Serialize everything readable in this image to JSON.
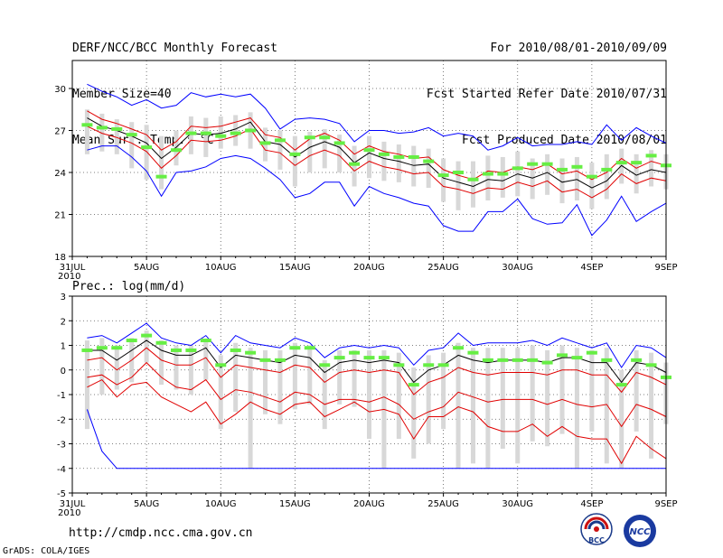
{
  "header": {
    "left": [
      "DERF/NCC/BCC Monthly Forecast",
      "Member Size=40",
      "Mean Surf. Temp.: °C"
    ],
    "right": [
      "For 2010/08/01-2010/09/09",
      "Fcst Started Refer Date 2010/07/31",
      "Fcst Produced Date 2010/08/01"
    ]
  },
  "footer": {
    "url": "http://cmdp.ncc.cma.gov.cn",
    "credit": "GrADS: COLA/IGES",
    "logo_left_text": "BCC",
    "logo_right_text": "NCC"
  },
  "colors": {
    "envelope": "#0000ff",
    "spread": "#e00000",
    "ensemble_mean": "#000000",
    "median_mark": "#66ee44",
    "box": "#d8d8d8"
  },
  "chart_data": [
    {
      "type": "box-ensemble",
      "title": "Mean Surf. Temp.: °C",
      "ylim": [
        18,
        32
      ],
      "yticks": [
        18,
        21,
        24,
        27,
        30
      ],
      "grid": true,
      "x_ticks": [
        {
          "label": "31JUL",
          "sub": "2010",
          "day": 0
        },
        {
          "label": "5AUG",
          "day": 5
        },
        {
          "label": "10AUG",
          "day": 10
        },
        {
          "label": "15AUG",
          "day": 15
        },
        {
          "label": "20AUG",
          "day": 20
        },
        {
          "label": "25AUG",
          "day": 25
        },
        {
          "label": "30AUG",
          "day": 30
        },
        {
          "label": "4SEP",
          "day": 35
        },
        {
          "label": "9SEP",
          "day": 40
        }
      ],
      "days": [
        1,
        2,
        3,
        4,
        5,
        6,
        7,
        8,
        9,
        10,
        11,
        12,
        13,
        14,
        15,
        16,
        17,
        18,
        19,
        20,
        21,
        22,
        23,
        24,
        25,
        26,
        27,
        28,
        29,
        30,
        31,
        32,
        33,
        34,
        35,
        36,
        37,
        38,
        39,
        40
      ],
      "mean": [
        27.9,
        27.3,
        27.0,
        26.6,
        26.1,
        25.0,
        25.8,
        26.8,
        26.7,
        26.8,
        27.1,
        27.6,
        26.2,
        26.0,
        25.1,
        25.8,
        26.2,
        25.8,
        24.7,
        25.4,
        25.0,
        24.8,
        24.5,
        24.6,
        23.6,
        23.3,
        23.0,
        23.5,
        23.4,
        23.9,
        23.6,
        24.0,
        23.3,
        23.5,
        22.9,
        23.4,
        24.5,
        23.8,
        24.2,
        24.0
      ],
      "upper_spread": [
        28.4,
        27.8,
        27.5,
        27.1,
        26.7,
        25.6,
        26.2,
        27.3,
        27.2,
        27.3,
        27.6,
        27.9,
        26.7,
        26.5,
        25.6,
        26.4,
        26.8,
        26.3,
        25.3,
        25.9,
        25.5,
        25.3,
        25.0,
        25.1,
        24.2,
        23.8,
        23.5,
        24.1,
        24.0,
        24.4,
        24.2,
        24.6,
        23.9,
        24.1,
        23.5,
        24.0,
        25.0,
        24.3,
        24.8,
        24.5
      ],
      "lower_spread": [
        27.3,
        26.8,
        26.5,
        26.1,
        25.5,
        24.3,
        25.2,
        26.3,
        26.2,
        26.3,
        26.6,
        27.1,
        25.6,
        25.4,
        24.5,
        25.2,
        25.6,
        25.2,
        24.1,
        24.8,
        24.4,
        24.2,
        23.9,
        24.0,
        23.0,
        22.8,
        22.5,
        22.9,
        22.8,
        23.3,
        23.0,
        23.4,
        22.6,
        22.8,
        22.2,
        22.8,
        23.9,
        23.2,
        23.6,
        23.4
      ],
      "env_max": [
        30.3,
        29.8,
        29.4,
        28.8,
        29.2,
        28.6,
        28.8,
        29.7,
        29.4,
        29.6,
        29.4,
        29.6,
        28.6,
        27.1,
        27.8,
        27.9,
        27.8,
        27.5,
        26.2,
        27.0,
        27.0,
        26.8,
        26.9,
        27.2,
        26.6,
        26.8,
        26.6,
        25.6,
        25.9,
        26.5,
        25.9,
        26.0,
        26.0,
        26.2,
        26.0,
        27.4,
        26.3,
        27.2,
        26.6,
        26.1
      ],
      "env_min": [
        25.6,
        25.9,
        25.9,
        25.1,
        24.1,
        22.3,
        24.0,
        24.1,
        24.4,
        25.0,
        25.2,
        25.0,
        24.3,
        23.5,
        22.2,
        22.5,
        23.3,
        23.3,
        21.6,
        23.0,
        22.5,
        22.2,
        21.8,
        21.6,
        20.2,
        19.8,
        19.8,
        21.2,
        21.2,
        22.1,
        20.7,
        20.3,
        20.4,
        21.7,
        19.5,
        20.6,
        22.3,
        20.5,
        21.2,
        21.8
      ],
      "box_top": [
        28.5,
        28.2,
        27.8,
        27.6,
        27.4,
        26.6,
        27.0,
        28.0,
        27.9,
        28.0,
        28.1,
        28.3,
        27.2,
        27.0,
        26.6,
        26.9,
        27.1,
        26.7,
        25.9,
        26.6,
        26.2,
        26.0,
        25.9,
        25.7,
        25.0,
        24.8,
        24.8,
        25.2,
        25.1,
        25.5,
        25.0,
        25.3,
        25.0,
        25.1,
        24.7,
        25.3,
        25.7,
        25.3,
        25.6,
        25.3
      ],
      "box_bottom": [
        25.3,
        25.5,
        25.3,
        24.3,
        23.5,
        22.8,
        24.5,
        25.3,
        25.1,
        25.7,
        25.9,
        25.7,
        24.8,
        24.2,
        23.0,
        24.0,
        24.3,
        24.0,
        23.0,
        23.6,
        23.4,
        23.3,
        23.0,
        22.9,
        21.9,
        21.3,
        21.5,
        22.0,
        22.2,
        22.3,
        22.1,
        22.4,
        21.8,
        22.0,
        21.4,
        22.1,
        23.2,
        22.5,
        23.0,
        22.8
      ],
      "median": [
        27.4,
        27.2,
        27.1,
        26.7,
        25.8,
        23.7,
        25.6,
        26.8,
        26.8,
        26.6,
        26.8,
        27.0,
        26.1,
        26.3,
        25.3,
        26.5,
        26.5,
        26.1,
        24.6,
        25.6,
        25.3,
        25.1,
        25.1,
        24.8,
        23.8,
        24.0,
        23.5,
        23.9,
        23.9,
        24.3,
        24.6,
        24.6,
        24.2,
        24.4,
        23.7,
        24.2,
        24.7,
        24.7,
        25.2,
        24.5
      ]
    },
    {
      "type": "box-ensemble",
      "title": "Prec.: log(mm/d)",
      "ylim": [
        -5,
        3
      ],
      "yticks": [
        -5,
        -4,
        -3,
        -2,
        -1,
        0,
        1,
        2,
        3
      ],
      "grid": true,
      "x_ticks": [
        {
          "label": "31JUL",
          "sub": "2010",
          "day": 0
        },
        {
          "label": "5AUG",
          "day": 5
        },
        {
          "label": "10AUG",
          "day": 10
        },
        {
          "label": "15AUG",
          "day": 15
        },
        {
          "label": "20AUG",
          "day": 20
        },
        {
          "label": "25AUG",
          "day": 25
        },
        {
          "label": "30AUG",
          "day": 30
        },
        {
          "label": "4SEP",
          "day": 35
        },
        {
          "label": "9SEP",
          "day": 40
        }
      ],
      "days": [
        1,
        2,
        3,
        4,
        5,
        6,
        7,
        8,
        9,
        10,
        11,
        12,
        13,
        14,
        15,
        16,
        17,
        18,
        19,
        20,
        21,
        22,
        23,
        24,
        25,
        26,
        27,
        28,
        29,
        30,
        31,
        32,
        33,
        34,
        35,
        36,
        37,
        38,
        39,
        40
      ],
      "mean": [
        0.8,
        0.8,
        0.4,
        0.8,
        1.2,
        0.8,
        0.6,
        0.6,
        0.9,
        0.1,
        0.6,
        0.5,
        0.4,
        0.3,
        0.6,
        0.5,
        -0.1,
        0.3,
        0.4,
        0.3,
        0.4,
        0.3,
        -0.5,
        0.0,
        0.2,
        0.6,
        0.4,
        0.3,
        0.4,
        0.4,
        0.4,
        0.3,
        0.5,
        0.5,
        0.3,
        0.3,
        -0.5,
        0.3,
        0.2,
        -0.1
      ],
      "upper_spread": [
        0.4,
        0.5,
        0.0,
        0.4,
        0.9,
        0.4,
        0.2,
        0.2,
        0.5,
        -0.3,
        0.2,
        0.1,
        0.0,
        -0.1,
        0.2,
        0.1,
        -0.5,
        -0.1,
        0.0,
        -0.1,
        0.0,
        -0.1,
        -1.0,
        -0.5,
        -0.3,
        0.1,
        -0.1,
        -0.2,
        -0.1,
        -0.1,
        -0.1,
        -0.2,
        0.0,
        0.0,
        -0.2,
        -0.2,
        -0.9,
        -0.1,
        -0.3,
        -0.6
      ],
      "lower_spread": [
        -0.3,
        -0.2,
        -0.6,
        -0.3,
        0.3,
        -0.3,
        -0.7,
        -0.8,
        -0.4,
        -1.2,
        -0.8,
        -0.9,
        -1.1,
        -1.3,
        -0.9,
        -1.0,
        -1.4,
        -1.2,
        -1.2,
        -1.3,
        -1.1,
        -1.4,
        -2.0,
        -1.7,
        -1.5,
        -0.9,
        -1.1,
        -1.3,
        -1.2,
        -1.2,
        -1.2,
        -1.4,
        -1.2,
        -1.4,
        -1.5,
        -1.4,
        -2.3,
        -1.4,
        -1.6,
        -1.9
      ],
      "low_red": [
        -0.7,
        -0.4,
        -1.1,
        -0.6,
        -0.5,
        -1.1,
        -1.4,
        -1.7,
        -1.3,
        -2.2,
        -1.8,
        -1.3,
        -1.6,
        -1.8,
        -1.4,
        -1.3,
        -1.9,
        -1.6,
        -1.3,
        -1.7,
        -1.6,
        -1.8,
        -2.8,
        -1.9,
        -1.9,
        -1.5,
        -1.7,
        -2.3,
        -2.5,
        -2.5,
        -2.2,
        -2.7,
        -2.3,
        -2.7,
        -2.8,
        -2.8,
        -3.8,
        -2.7,
        -3.2,
        -3.6
      ],
      "env_max": [
        1.3,
        1.4,
        1.1,
        1.5,
        1.9,
        1.3,
        1.1,
        1.0,
        1.4,
        0.7,
        1.4,
        1.1,
        1.0,
        0.9,
        1.3,
        1.1,
        0.5,
        0.9,
        1.0,
        0.9,
        1.0,
        0.9,
        0.2,
        0.8,
        0.9,
        1.5,
        1.0,
        1.1,
        1.1,
        1.1,
        1.2,
        1.0,
        1.3,
        1.1,
        0.9,
        1.1,
        0.1,
        1.0,
        0.9,
        0.5
      ],
      "env_min": [
        -1.6,
        -3.3,
        -4.0,
        -4.0,
        -4.0,
        -4.0,
        -4.0,
        -4.0,
        -4.0,
        -4.0,
        -4.0,
        -4.0,
        -4.0,
        -4.0,
        -4.0,
        -4.0,
        -4.0,
        -4.0,
        -4.0,
        -4.0,
        -4.0,
        -4.0,
        -4.0,
        -4.0,
        -4.0,
        -4.0,
        -4.0,
        -4.0,
        -4.0,
        -4.0,
        -4.0,
        -4.0,
        -4.0,
        -4.0,
        -4.0,
        -4.0,
        -4.0,
        -4.0,
        -4.0,
        -4.0
      ],
      "box_top": [
        1.2,
        1.3,
        1.0,
        1.3,
        1.6,
        1.2,
        1.0,
        1.0,
        1.2,
        0.6,
        1.1,
        0.9,
        0.8,
        0.8,
        1.1,
        1.0,
        0.4,
        0.8,
        0.8,
        0.8,
        0.8,
        0.7,
        0.1,
        0.6,
        0.7,
        1.1,
        0.9,
        0.9,
        0.9,
        0.9,
        1.0,
        0.8,
        1.0,
        0.9,
        0.8,
        0.9,
        0.0,
        0.8,
        0.7,
        0.3
      ],
      "box_bottom": [
        -2.4,
        -1.0,
        -0.8,
        -0.5,
        0.3,
        -0.6,
        -0.8,
        -1.0,
        -0.4,
        -2.4,
        -1.7,
        -4.0,
        -1.8,
        -2.2,
        -1.6,
        -1.4,
        -2.4,
        -1.4,
        -1.5,
        -2.8,
        -4.0,
        -2.8,
        -3.6,
        -3.0,
        -2.4,
        -4.0,
        -3.8,
        -4.0,
        -3.2,
        -3.8,
        -2.9,
        -3.1,
        -2.6,
        -4.0,
        -2.5,
        -3.8,
        -4.0,
        -2.5,
        -3.6,
        -2.2
      ],
      "median": [
        0.8,
        0.9,
        0.9,
        1.2,
        1.4,
        1.1,
        0.8,
        0.8,
        1.2,
        0.2,
        0.8,
        0.7,
        0.4,
        0.4,
        0.9,
        0.9,
        0.2,
        0.5,
        0.7,
        0.5,
        0.5,
        0.2,
        -0.6,
        0.2,
        0.2,
        0.9,
        0.7,
        0.4,
        0.4,
        0.4,
        0.4,
        0.3,
        0.6,
        0.5,
        0.7,
        0.4,
        -0.6,
        0.4,
        0.2,
        -0.3
      ]
    }
  ]
}
